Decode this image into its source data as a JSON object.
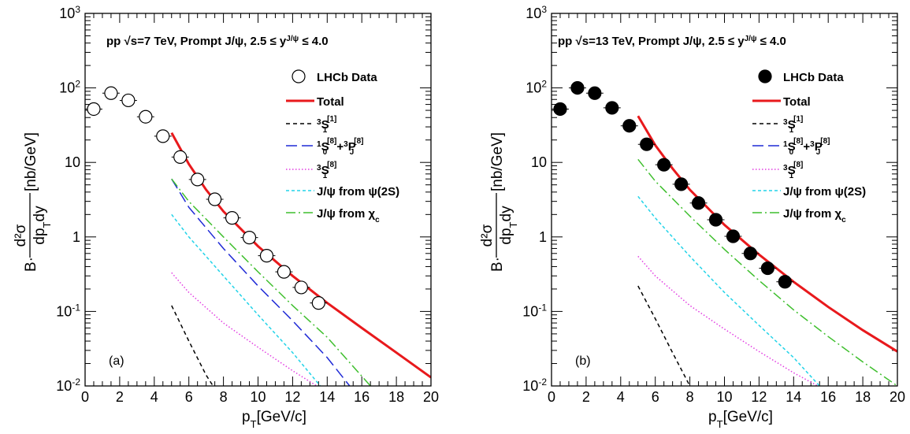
{
  "chart_data": [
    {
      "type": "line",
      "panel_label": "(a)",
      "header": {
        "pre": "pp  √s=7 TeV, Prompt J/ψ, 2.5 ≤ y",
        "sup": "J/ψ",
        "post": " ≤ 4.0"
      },
      "xlabel": {
        "main": "p",
        "sub": "T",
        "rest": "[GeV/c]"
      },
      "ylabel": {
        "prefix": "B·",
        "num": "d²σ",
        "den": "dp",
        "den_sub": "T",
        "den_rest": "dy",
        "unit": "[nb/GeV]"
      },
      "xlim": [
        0,
        20
      ],
      "ylim": [
        0.01,
        1000
      ],
      "yscale": "log",
      "x_ticks": [
        "0",
        "2",
        "4",
        "6",
        "8",
        "10",
        "12",
        "14",
        "16",
        "18",
        "20"
      ],
      "y_ticks": [
        {
          "value": 0.01,
          "base": "10",
          "exp": "-2"
        },
        {
          "value": 0.1,
          "base": "10",
          "exp": "-1"
        },
        {
          "value": 1,
          "base": "1",
          "exp": ""
        },
        {
          "value": 10,
          "base": "10",
          "exp": ""
        },
        {
          "value": 100,
          "base": "10",
          "exp": "2"
        },
        {
          "value": 1000,
          "base": "10",
          "exp": "3"
        }
      ],
      "data_points": {
        "name": "LHCb Data",
        "marker": "open-circle",
        "x": [
          0.5,
          1.5,
          2.5,
          3.5,
          4.5,
          5.5,
          6.5,
          7.5,
          8.5,
          9.5,
          10.5,
          11.5,
          12.5,
          13.5
        ],
        "y": [
          52,
          85,
          68,
          41,
          22.5,
          11.8,
          5.9,
          3.2,
          1.8,
          0.98,
          0.56,
          0.34,
          0.21,
          0.13
        ]
      },
      "series": [
        {
          "name": "Total",
          "color": "#e8191c",
          "style": "solid",
          "x": [
            5,
            6,
            7,
            8,
            10,
            12,
            14,
            16,
            18,
            20
          ],
          "y": [
            25,
            9.5,
            4.3,
            2.2,
            0.75,
            0.3,
            0.13,
            0.06,
            0.028,
            0.013
          ]
        },
        {
          "name": "³S₁[1]",
          "color": "#000000",
          "style": "dash",
          "x": [
            5,
            6,
            7,
            7.4
          ],
          "y": [
            0.12,
            0.04,
            0.014,
            0.01
          ]
        },
        {
          "name": "¹S₀[8]+³PJ[8]",
          "color": "#1f2ad6",
          "style": "longdash",
          "x": [
            5,
            6,
            8,
            10,
            12,
            14,
            15.3
          ],
          "y": [
            6,
            2.5,
            0.7,
            0.22,
            0.075,
            0.024,
            0.01
          ]
        },
        {
          "name": "³S₁[8]",
          "color": "#e23de2",
          "style": "dot",
          "x": [
            5,
            6,
            8,
            10,
            12,
            13.4
          ],
          "y": [
            0.33,
            0.18,
            0.07,
            0.033,
            0.016,
            0.01
          ]
        },
        {
          "name": "J/ψ from ψ(2S)",
          "color": "#22d3e8",
          "style": "shortdash",
          "x": [
            5,
            6,
            8,
            10,
            12,
            13.6
          ],
          "y": [
            2,
            1.0,
            0.3,
            0.09,
            0.028,
            0.01
          ]
        },
        {
          "name": "J/ψ from χc",
          "color": "#3fbf2e",
          "style": "dashdot",
          "x": [
            5,
            6,
            8,
            10,
            12,
            14,
            16.5
          ],
          "y": [
            6,
            3.0,
            1.0,
            0.34,
            0.12,
            0.045,
            0.01
          ]
        }
      ]
    },
    {
      "type": "line",
      "panel_label": "(b)",
      "header": {
        "pre": "pp  √s=13 TeV, Prompt J/ψ, 2.5 ≤ y",
        "sup": "J/ψ",
        "post": " ≤ 4.0"
      },
      "xlabel": {
        "main": "p",
        "sub": "T",
        "rest": "[GeV/c]"
      },
      "ylabel": {
        "prefix": "B·",
        "num": "d²σ",
        "den": "dp",
        "den_sub": "T",
        "den_rest": "dy",
        "unit": "[nb/GeV]"
      },
      "xlim": [
        0,
        20
      ],
      "ylim": [
        0.01,
        1000
      ],
      "yscale": "log",
      "x_ticks": [
        "0",
        "2",
        "4",
        "6",
        "8",
        "10",
        "12",
        "14",
        "16",
        "18",
        "20"
      ],
      "y_ticks": [
        {
          "value": 0.01,
          "base": "10",
          "exp": "-2"
        },
        {
          "value": 0.1,
          "base": "10",
          "exp": "-1"
        },
        {
          "value": 1,
          "base": "1",
          "exp": ""
        },
        {
          "value": 10,
          "base": "10",
          "exp": ""
        },
        {
          "value": 100,
          "base": "10",
          "exp": "2"
        },
        {
          "value": 1000,
          "base": "10",
          "exp": "3"
        }
      ],
      "data_points": {
        "name": "LHCb Data",
        "marker": "filled-circle",
        "x": [
          0.5,
          1.5,
          2.5,
          3.5,
          4.5,
          5.5,
          6.5,
          7.5,
          8.5,
          9.5,
          10.5,
          11.5,
          12.5,
          13.5
        ],
        "y": [
          52,
          100,
          85,
          54,
          31,
          17.5,
          9.3,
          5.1,
          2.85,
          1.7,
          1.02,
          0.6,
          0.38,
          0.25
        ]
      },
      "series": [
        {
          "name": "Total",
          "color": "#e8191c",
          "style": "solid",
          "x": [
            5,
            6,
            7,
            8,
            10,
            12,
            14,
            16,
            18,
            20
          ],
          "y": [
            42,
            17,
            8.3,
            4.3,
            1.45,
            0.58,
            0.25,
            0.115,
            0.056,
            0.029
          ]
        },
        {
          "name": "³S₁[1]",
          "color": "#000000",
          "style": "dash",
          "x": [
            5,
            6,
            7,
            8
          ],
          "y": [
            0.22,
            0.08,
            0.028,
            0.01
          ]
        },
        {
          "name": "¹S₀[8]+³PJ[8]",
          "color": "#1f2ad6",
          "style": "longdash",
          "x": [],
          "y": []
        },
        {
          "name": "³S₁[8]",
          "color": "#e23de2",
          "style": "dot",
          "x": [
            5,
            6,
            8,
            10,
            12,
            14,
            15.4
          ],
          "y": [
            0.55,
            0.3,
            0.12,
            0.058,
            0.029,
            0.015,
            0.01
          ]
        },
        {
          "name": "J/ψ from ψ(2S)",
          "color": "#22d3e8",
          "style": "shortdash",
          "x": [
            5,
            6,
            8,
            10,
            12,
            14,
            15.5
          ],
          "y": [
            3.5,
            1.8,
            0.55,
            0.18,
            0.065,
            0.024,
            0.01
          ]
        },
        {
          "name": "J/ψ from χc",
          "color": "#3fbf2e",
          "style": "dashdot",
          "x": [
            5,
            6,
            8,
            10,
            12,
            14,
            16,
            18,
            20
          ],
          "y": [
            11,
            5.6,
            1.9,
            0.68,
            0.26,
            0.105,
            0.046,
            0.021,
            0.01
          ]
        }
      ]
    }
  ]
}
